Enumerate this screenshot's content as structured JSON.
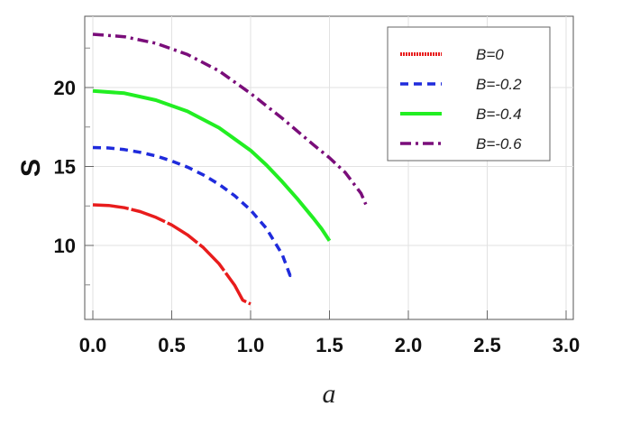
{
  "chart_data": {
    "type": "line",
    "xlabel": "a",
    "ylabel": "S",
    "xlim": [
      0,
      3
    ],
    "ylim": [
      5.2,
      24.2
    ],
    "xticks": [
      0.0,
      0.5,
      1.0,
      1.5,
      2.0,
      2.5,
      3.0
    ],
    "xtick_labels": [
      "0.0",
      "0.5",
      "1.0",
      "1.5",
      "2.0",
      "2.5",
      "3.0"
    ],
    "yticks": [
      10,
      15,
      20
    ],
    "ytick_labels": [
      "10",
      "15",
      "20"
    ],
    "grid": true,
    "legend_position": "top-right",
    "series": [
      {
        "name": "B=0",
        "color": "#e81c1c",
        "dash": "long-dash",
        "x": [
          0,
          0.1,
          0.2,
          0.3,
          0.4,
          0.5,
          0.6,
          0.7,
          0.8,
          0.9,
          0.95,
          1.0
        ],
        "y": [
          12.57,
          12.53,
          12.39,
          12.14,
          11.78,
          11.3,
          10.67,
          9.87,
          8.84,
          7.46,
          6.53,
          6.29
        ]
      },
      {
        "name": "B=-0.2",
        "color": "#1f2bdc",
        "dash": "dashed",
        "x": [
          0,
          0.1,
          0.2,
          0.3,
          0.4,
          0.5,
          0.6,
          0.7,
          0.8,
          0.9,
          1.0,
          1.1,
          1.2,
          1.25,
          1.26
        ],
        "y": [
          16.2,
          16.17,
          16.07,
          15.9,
          15.67,
          15.35,
          14.96,
          14.47,
          13.87,
          13.14,
          12.24,
          11.08,
          9.44,
          8.1,
          8.3
        ]
      },
      {
        "name": "B=-0.4",
        "color": "#22ee22",
        "dash": "solid",
        "x": [
          0,
          0.2,
          0.4,
          0.6,
          0.8,
          1.0,
          1.1,
          1.2,
          1.3,
          1.4,
          1.45,
          1.5
        ],
        "y": [
          19.79,
          19.64,
          19.2,
          18.49,
          17.45,
          16.02,
          15.09,
          14.04,
          12.91,
          11.7,
          11.05,
          10.3
        ]
      },
      {
        "name": "B=-0.6",
        "color": "#7a0d7a",
        "dash": "dash-dot",
        "x": [
          0,
          0.2,
          0.4,
          0.6,
          0.8,
          1.0,
          1.2,
          1.4,
          1.5,
          1.6,
          1.7,
          1.73
        ],
        "y": [
          23.37,
          23.22,
          22.8,
          22.09,
          21.05,
          19.63,
          18.06,
          16.36,
          15.55,
          14.62,
          13.3,
          12.6
        ]
      }
    ]
  }
}
